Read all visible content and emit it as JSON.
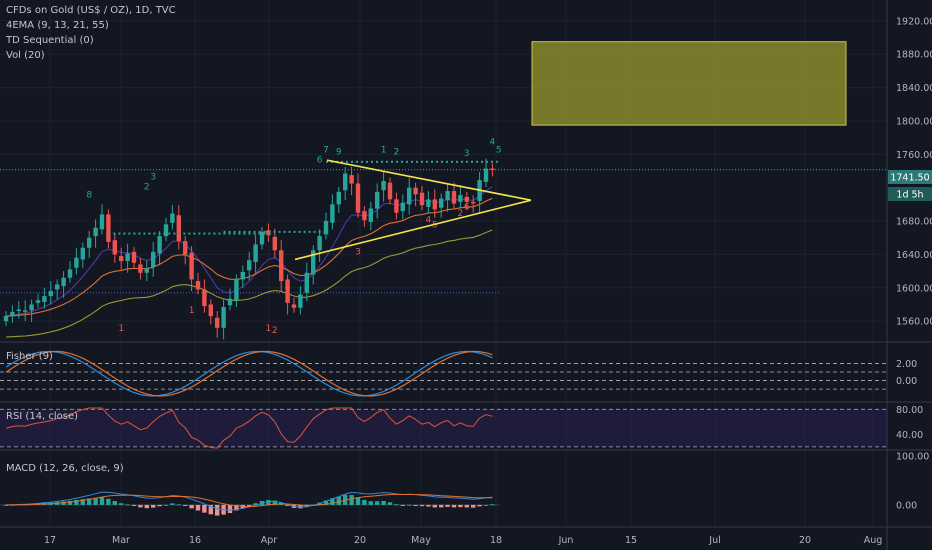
{
  "header": {
    "title": "CFDs on Gold (US$ / OZ), 1D, TVC",
    "indicators": [
      "4EMA (9, 13, 21, 55)",
      "TD Sequential (0)",
      "Vol (20)"
    ]
  },
  "price_panel": {
    "price_badge": "1741.50",
    "countdown_badge": "1d 5h",
    "partial_tick": "17"
  },
  "panes": {
    "fisher": "Fisher (9)",
    "rsi": "RSI (14, close)",
    "macd": "MACD (12, 26, close, 9)"
  },
  "colors": {
    "background": "#131722",
    "up": "#26a69a",
    "down": "#ef5350",
    "trendline": "#f5e54a",
    "target_box": "#8a8a2a",
    "price_line": "#4fa3a8"
  },
  "chart_data": [
    {
      "type": "candlestick",
      "title": "CFDs on Gold (US$ / OZ), 1D, TVC",
      "ylim": [
        1535,
        1945
      ],
      "yticks": [
        "1920.00",
        "1880.00",
        "1840.00",
        "1800.00",
        "1760.00",
        "1680.00",
        "1640.00",
        "1600.00",
        "1560.00"
      ],
      "xticks": [
        "17",
        "Mar",
        "16",
        "Apr",
        "20",
        "May",
        "18",
        "Jun",
        "15",
        "Jul",
        "20",
        "Aug"
      ],
      "last_price": 1741.5,
      "closes": [
        1566,
        1571,
        1574,
        1573,
        1580,
        1585,
        1590,
        1596,
        1604,
        1612,
        1622,
        1636,
        1648,
        1660,
        1672,
        1688,
        1655,
        1640,
        1632,
        1641,
        1630,
        1618,
        1623,
        1643,
        1662,
        1676,
        1689,
        1656,
        1640,
        1610,
        1598,
        1578,
        1566,
        1552,
        1577,
        1587,
        1610,
        1619,
        1633,
        1652,
        1667,
        1663,
        1645,
        1608,
        1582,
        1576,
        1592,
        1618,
        1645,
        1662,
        1680,
        1700,
        1715,
        1737,
        1725,
        1690,
        1681,
        1695,
        1715,
        1728,
        1706,
        1690,
        1702,
        1720,
        1712,
        1699,
        1706,
        1694,
        1707,
        1716,
        1701,
        1711,
        1703,
        1702,
        1729,
        1743,
        1741.5
      ],
      "ema_fast_last": 1720,
      "ema_slow_last": 1667,
      "triangle_apex": 1705,
      "target_zone": [
        1795,
        1895
      ]
    },
    {
      "type": "line",
      "title": "Fisher (9)",
      "yticks": [
        "2.00",
        "0.00"
      ],
      "ylim": [
        -2.5,
        4.5
      ]
    },
    {
      "type": "line",
      "title": "RSI (14, close)",
      "yticks": [
        "80.00",
        "40.00"
      ],
      "ylim": [
        15,
        90
      ]
    },
    {
      "type": "bar",
      "title": "MACD (12, 26, close, 9)",
      "yticks": [
        "100.00",
        "0.00"
      ],
      "ylim": [
        -45,
        110
      ]
    }
  ]
}
